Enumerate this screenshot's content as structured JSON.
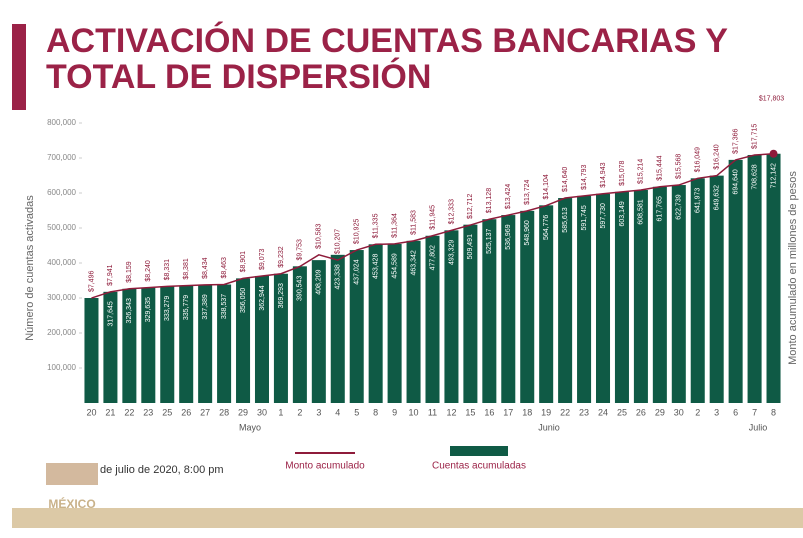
{
  "chart_data": {
    "type": "bar",
    "title_lines": [
      "ACTIVACIÓN DE CUENTAS BANCARIAS Y",
      "TOTAL DE DISPERSIÓN"
    ],
    "y_label": "Número de cuentas activadas",
    "y2_label": "Monto acumulado en millones de pesos",
    "categories": [
      "20",
      "21",
      "22",
      "23",
      "25",
      "26",
      "27",
      "28",
      "29",
      "30",
      "1",
      "2",
      "3",
      "4",
      "5",
      "8",
      "9",
      "10",
      "11",
      "12",
      "15",
      "16",
      "17",
      "18",
      "19",
      "22",
      "23",
      "24",
      "25",
      "26",
      "29",
      "30",
      "2",
      "3",
      "6",
      "7",
      "8"
    ],
    "months": [
      "Mayo",
      "Junio",
      "Julio"
    ],
    "ylim": [
      0,
      800000
    ],
    "yticks": [
      {
        "value": 100000,
        "label": "100,000"
      },
      {
        "value": 200000,
        "label": "200,000"
      },
      {
        "value": 300000,
        "label": "300,000"
      },
      {
        "value": 400000,
        "label": "400,000"
      },
      {
        "value": 500000,
        "label": "500,000"
      },
      {
        "value": 600000,
        "label": "600,000"
      },
      {
        "value": 700000,
        "label": "700,000"
      },
      {
        "value": 800000,
        "label": "800,000"
      }
    ],
    "y2lim": [
      0,
      20000
    ],
    "series": [
      {
        "name": "Cuentas acumuladas",
        "type": "bar",
        "color": "#0f5a45",
        "values": [
          300000,
          317645,
          326343,
          329635,
          333279,
          335779,
          337389,
          338537,
          356050,
          362944,
          369293,
          390543,
          408209,
          423338,
          437024,
          453428,
          454589,
          463342,
          477802,
          493329,
          509491,
          525137,
          536969,
          548960,
          564776,
          585613,
          591745,
          597730,
          603149,
          608581,
          617765,
          622739,
          641973,
          649632,
          694640,
          708628,
          712142
        ],
        "value_labels": [
          null,
          "317,645",
          "326,343",
          "329,635",
          "333,279",
          "335,779",
          "337,389",
          "338,537",
          "356,050",
          "362,944",
          "369,293",
          "390,543",
          "408,209",
          "423,338",
          "437,024",
          "453,428",
          "454,589",
          "463,342",
          "477,802",
          "493,329",
          "509,491",
          "525,137",
          "536,969",
          "548,960",
          "564,776",
          "585,613",
          "591,745",
          "597,730",
          "603,149",
          "608,581",
          "617,765",
          "622,739",
          "641,973",
          "649,632",
          "694,640",
          "708,628",
          "712,142"
        ]
      },
      {
        "name": "Monto acumulado",
        "type": "line",
        "axis": "y2",
        "color": "#8e1b3a",
        "values": [
          7496,
          7941,
          8159,
          8240,
          8331,
          8381,
          8434,
          8463,
          8901,
          9073,
          9232,
          9753,
          10583,
          10207,
          10925,
          11335,
          11364,
          11583,
          11945,
          12333,
          12712,
          13128,
          13424,
          13724,
          14104,
          14640,
          14793,
          14943,
          15078,
          15214,
          15444,
          15568,
          16049,
          16240,
          17366,
          17715,
          17803
        ],
        "value_labels": [
          "$7,496",
          "$7,941",
          "$8,159",
          "$8,240",
          "$8,331",
          "$8,381",
          "$8,434",
          "$8,463",
          "$8,901",
          "$9,073",
          "$9,232",
          "$9,753",
          "$10,583",
          "$10,207",
          "$10,925",
          "$11,335",
          "$11,364",
          "$11,583",
          "$11,945",
          "$12,333",
          "$12,712",
          "$13,128",
          "$13,424",
          "$13,724",
          "$14,104",
          "$14,640",
          "$14,793",
          "$14,943",
          "$15,078",
          "$15,214",
          "$15,444",
          "$15,568",
          "$16,049",
          "$16,240",
          "$17,366",
          "$17,715",
          "$17,803"
        ]
      }
    ],
    "footer": "de julio de 2020, 8:00 pm",
    "logo_text": "MÉXICO"
  }
}
